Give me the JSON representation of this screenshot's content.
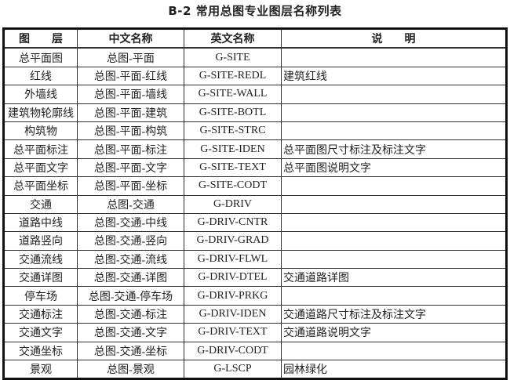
{
  "title": "B-2 常用总图专业图层名称列表",
  "headers": [
    "图　　层",
    "中文名称",
    "英文名称",
    "说　　明"
  ],
  "rows": [
    [
      "总平面图",
      "总图-平面",
      "G-SITE",
      ""
    ],
    [
      "红线",
      "总图-平面-红线",
      "G-SITE-REDL",
      "建筑红线"
    ],
    [
      "外墙线",
      "总图-平面-墙线",
      "G-SITE-WALL",
      ""
    ],
    [
      "建筑物轮廓线",
      "总图-平面-建筑",
      "G-SITE-BOTL",
      ""
    ],
    [
      "构筑物",
      "总图-平面-构筑",
      "G-SITE-STRC",
      ""
    ],
    [
      "总平面标注",
      "总图-平面-标注",
      "G-SITE-IDEN",
      "总平面图尺寸标注及标注文字"
    ],
    [
      "总平面文字",
      "总图-平面-文字",
      "G-SITE-TEXT",
      "总平面图说明文字"
    ],
    [
      "总平面坐标",
      "总图-平面-坐标",
      "G-SITE-CODT",
      ""
    ],
    [
      "交通",
      "总图-交通",
      "G-DRIV",
      ""
    ],
    [
      "道路中线",
      "总图-交通-中线",
      "G-DRIV-CNTR",
      ""
    ],
    [
      "道路竖向",
      "总图-交通-竖向",
      "G-DRIV-GRAD",
      ""
    ],
    [
      "交通流线",
      "总图-交通-流线",
      "G-DRIV-FLWL",
      ""
    ],
    [
      "交通详图",
      "总图-交通-详图",
      "G-DRIV-DTEL",
      "交通道路详图"
    ],
    [
      "停车场",
      "总图-交通-停车场",
      "G-DRIV-PRKG",
      ""
    ],
    [
      "交通标注",
      "总图-交通-标注",
      "G-DRIV-IDEN",
      "交通道路尺寸标注及标注文字"
    ],
    [
      "交通文字",
      "总图-交通-文字",
      "G-DRIV-TEXT",
      "交通道路说明文字"
    ],
    [
      "交通坐标",
      "总图-交通-坐标",
      "G-DRIV-CODT",
      ""
    ],
    [
      "景观",
      "总图-景观",
      "G-LSCP",
      "园林绿化"
    ]
  ]
}
